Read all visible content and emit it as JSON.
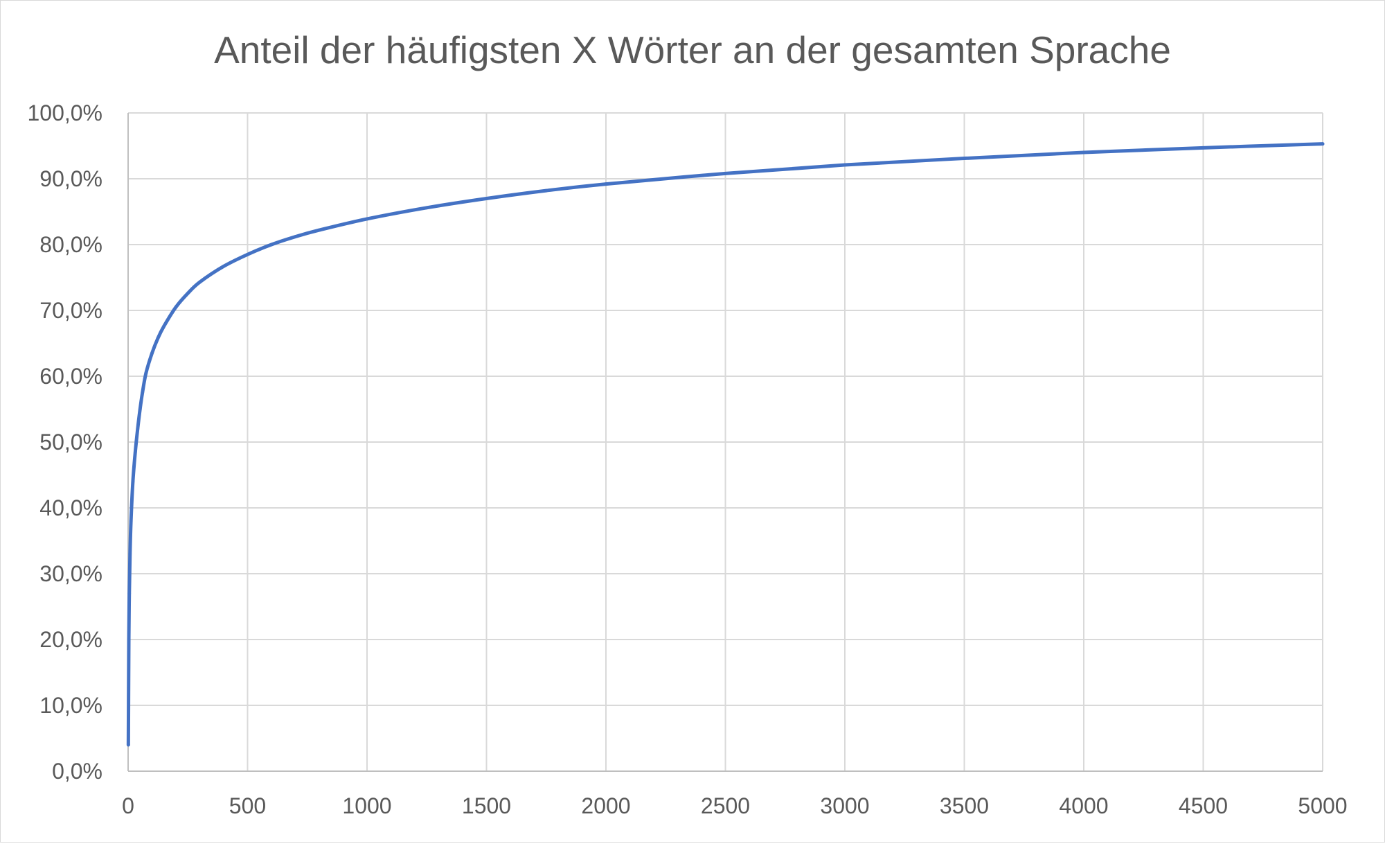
{
  "chart_data": {
    "type": "line",
    "title": "Anteil der häufigsten X Wörter an der gesamten Sprache",
    "xlabel": "",
    "ylabel": "",
    "xlim": [
      0,
      5000
    ],
    "ylim": [
      0,
      100
    ],
    "grid": true,
    "legend": "none",
    "x_ticks": [
      0,
      500,
      1000,
      1500,
      2000,
      2500,
      3000,
      3500,
      4000,
      4500,
      5000
    ],
    "x_tick_labels": [
      "0",
      "500",
      "1000",
      "1500",
      "2000",
      "2500",
      "3000",
      "3500",
      "4000",
      "4500",
      "5000"
    ],
    "y_ticks": [
      0,
      10,
      20,
      30,
      40,
      50,
      60,
      70,
      80,
      90,
      100
    ],
    "y_tick_labels": [
      "0,0%",
      "10,0%",
      "20,0%",
      "30,0%",
      "40,0%",
      "50,0%",
      "60,0%",
      "70,0%",
      "80,0%",
      "90,0%",
      "100,0%"
    ],
    "series": [
      {
        "color": "#4472c4",
        "x": [
          1,
          3,
          5,
          8,
          12,
          20,
          30,
          40,
          50,
          60,
          75,
          100,
          125,
          150,
          200,
          250,
          300,
          400,
          500,
          600,
          700,
          800,
          1000,
          1250,
          1500,
          1750,
          2000,
          2500,
          3000,
          3500,
          4000,
          4500,
          5000
        ],
        "y": [
          4.0,
          20.0,
          27.0,
          33.0,
          38.0,
          44.0,
          48.5,
          52.0,
          55.0,
          57.5,
          60.5,
          63.5,
          65.8,
          67.6,
          70.5,
          72.6,
          74.3,
          76.7,
          78.5,
          80.0,
          81.2,
          82.2,
          83.9,
          85.6,
          87.0,
          88.2,
          89.2,
          90.8,
          92.1,
          93.1,
          94.0,
          94.7,
          95.3
        ]
      }
    ]
  }
}
